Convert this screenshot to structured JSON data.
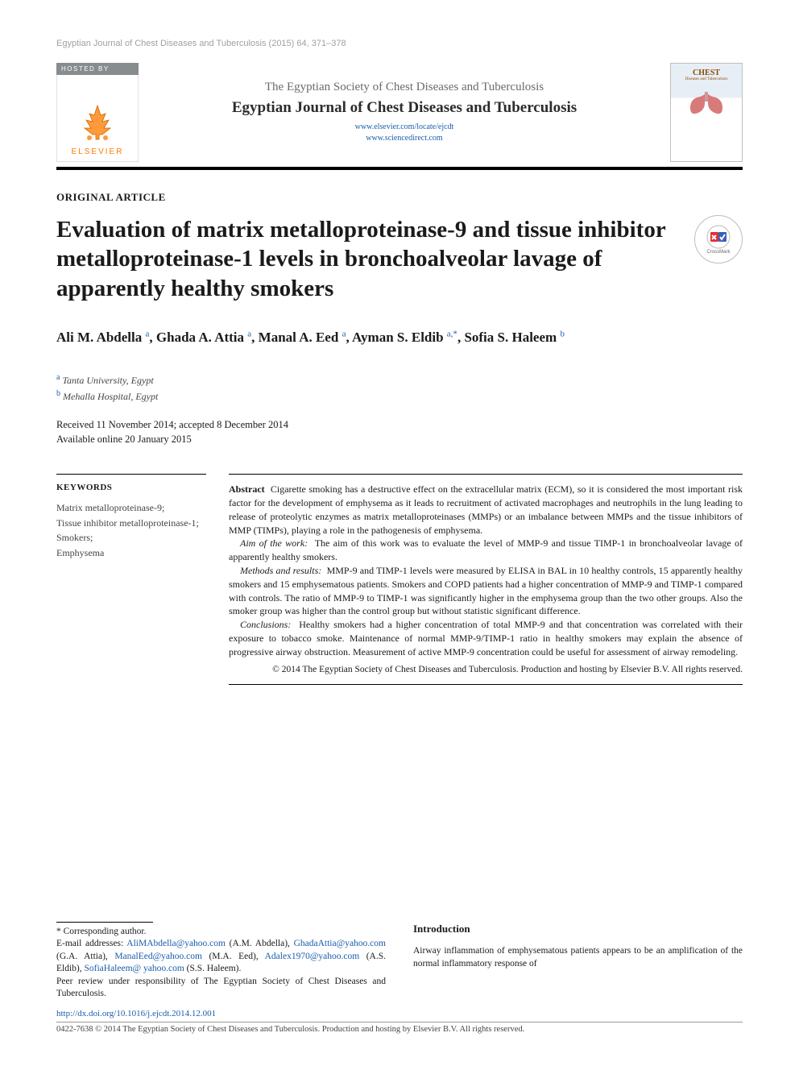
{
  "runningHead": "Egyptian Journal of Chest Diseases and Tuberculosis (2015) 64, 371–378",
  "hostedBy": "HOSTED BY",
  "publisher": "ELSEVIER",
  "society": "The Egyptian Society of Chest Diseases and Tuberculosis",
  "journal": "Egyptian Journal of Chest Diseases and Tuberculosis",
  "link1": "www.elsevier.com/locate/ejcdt",
  "link2": "www.sciencedirect.com",
  "cover": {
    "title": "CHEST",
    "sub": "Diseases and Tuberculosis"
  },
  "articleType": "ORIGINAL ARTICLE",
  "title": "Evaluation of matrix metalloproteinase-9 and tissue inhibitor metalloproteinase-1 levels in bronchoalveolar lavage of apparently healthy smokers",
  "crossmark": "CrossMark",
  "authors": [
    {
      "name": "Ali M. Abdella",
      "sup": "a"
    },
    {
      "name": "Ghada A. Attia",
      "sup": "a"
    },
    {
      "name": "Manal A. Eed",
      "sup": "a"
    },
    {
      "name": "Ayman S. Eldib",
      "sup": "a,*"
    },
    {
      "name": "Sofia S. Haleem",
      "sup": "b"
    }
  ],
  "affiliations": [
    {
      "sup": "a",
      "text": "Tanta University, Egypt"
    },
    {
      "sup": "b",
      "text": "Mehalla Hospital, Egypt"
    }
  ],
  "dates": {
    "received": "Received 11 November 2014; accepted 8 December 2014",
    "online": "Available online 20 January 2015"
  },
  "keywordsHead": "KEYWORDS",
  "keywords": "Matrix metalloproteinase-9;\nTissue inhibitor metalloproteinase-1;\nSmokers;\nEmphysema",
  "abstract": {
    "lead": "Abstract",
    "intro": "Cigarette smoking has a destructive effect on the extracellular matrix (ECM), so it is considered the most important risk factor for the development of emphysema as it leads to recruitment of activated macrophages and neutrophils in the lung leading to release of proteolytic enzymes as matrix metalloproteinases (MMPs) or an imbalance between MMPs and the tissue inhibitors of MMP (TIMPs), playing a role in the pathogenesis of emphysema.",
    "aimLabel": "Aim of the work:",
    "aim": "The aim of this work was to evaluate the level of MMP-9 and tissue TIMP-1 in bronchoalveolar lavage of apparently healthy smokers.",
    "methodsLabel": "Methods and results:",
    "methods": "MMP-9 and TIMP-1 levels were measured by ELISA in BAL in 10 healthy controls, 15 apparently healthy smokers and 15 emphysematous patients. Smokers and COPD patients had a higher concentration of MMP-9 and TIMP-1 compared with controls. The ratio of MMP-9 to TIMP-1 was significantly higher in the emphysema group than the two other groups. Also the smoker group was higher than the control group but without statistic significant difference.",
    "conclusionsLabel": "Conclusions:",
    "conclusions": "Healthy smokers had a higher concentration of total MMP-9 and that concentration was correlated with their exposure to tobacco smoke. Maintenance of normal MMP-9/TIMP-1 ratio in healthy smokers may explain the absence of progressive airway obstruction. Measurement of active MMP-9 concentration could be useful for assessment of airway remodeling.",
    "copyright": "© 2014 The Egyptian Society of Chest Diseases and Tuberculosis. Production and hosting by Elsevier B.V. All rights reserved."
  },
  "footnotes": {
    "corresponding": "* Corresponding author.",
    "emailsLabel": "E-mail addresses:",
    "emails": [
      {
        "addr": "AliMAbdella@yahoo.com",
        "who": "(A.M. Abdella)"
      },
      {
        "addr": "GhadaAttia@yahoo.com",
        "who": "(G.A. Attia)"
      },
      {
        "addr": "ManalEed@yahoo.com",
        "who": "(M.A. Eed)"
      },
      {
        "addr": "Adalex1970@yahoo.com",
        "who": "(A.S. Eldib)"
      },
      {
        "addr": "SofiaHaleem@ yahoo.com",
        "who": "(S.S. Haleem)."
      }
    ],
    "peerReview": "Peer review under responsibility of The Egyptian Society of Chest Diseases and Tuberculosis."
  },
  "introHead": "Introduction",
  "introText": "Airway inflammation of emphysematous patients appears to be an amplification of the normal inflammatory response of",
  "doi": "http://dx.doi.org/10.1016/j.ejcdt.2014.12.001",
  "issnLine": "0422-7638 © 2014 The Egyptian Society of Chest Diseases and Tuberculosis. Production and hosting by Elsevier B.V. All rights reserved.",
  "colors": {
    "link": "#1a5dac",
    "elsevierOrange": "#ff7a00",
    "hostedGrey": "#878c8f",
    "runningGrey": "#a0a0a0"
  }
}
